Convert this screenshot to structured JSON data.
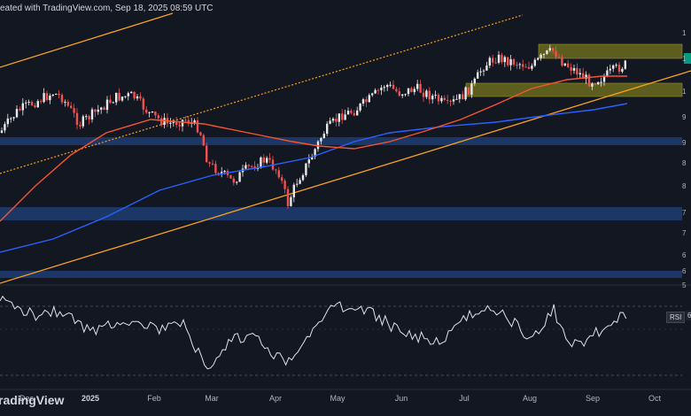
{
  "caption": "eated with TradingView.com, Sep 18, 2025 08:59 UTC",
  "brand": "radingView",
  "rsi_label": "RSI",
  "rsi_value": "6",
  "colors": {
    "background": "#131722",
    "candle_up": "#e8e8e8",
    "candle_down": "#ef5350",
    "ma_fast": "#f7552f",
    "ma_slow": "#2962ff",
    "trendline": "#f7a31c",
    "support_zone": "#1e3a6e",
    "supply_zone": "#6b6a1e",
    "rsi_line": "#e0e3eb"
  },
  "x_axis": [
    {
      "label": "Dec",
      "bold": false
    },
    {
      "label": "2025",
      "bold": true
    },
    {
      "label": "Feb",
      "bold": false
    },
    {
      "label": "Mar",
      "bold": false
    },
    {
      "label": "Apr",
      "bold": false
    },
    {
      "label": "May",
      "bold": false
    },
    {
      "label": "Jun",
      "bold": false
    },
    {
      "label": "Jul",
      "bold": false
    },
    {
      "label": "Aug",
      "bold": false
    },
    {
      "label": "Sep",
      "bold": false
    },
    {
      "label": "Oct",
      "bold": false
    }
  ],
  "right_axis_fragments": [
    "1",
    "1",
    "1",
    "9",
    "9",
    "8",
    "8",
    "7",
    "7",
    "6",
    "6",
    "5"
  ],
  "chart_data": {
    "type": "candlestick",
    "series": [
      {
        "name": "",
        "kind": "price"
      },
      {
        "name": "",
        "kind": "moving-average-fast"
      },
      {
        "name": "",
        "kind": "moving-average-slow"
      },
      {
        "name": "RSI",
        "kind": "oscillator"
      }
    ],
    "zones": [
      {
        "kind": "resistance",
        "color": "#6b6a1e"
      },
      {
        "kind": "support",
        "color": "#6b6a1e"
      },
      {
        "kind": "support",
        "color": "#1e3a6e"
      },
      {
        "kind": "support",
        "color": "#1e3a6e"
      },
      {
        "kind": "support",
        "color": "#1e3a6e"
      }
    ],
    "grid": true
  }
}
